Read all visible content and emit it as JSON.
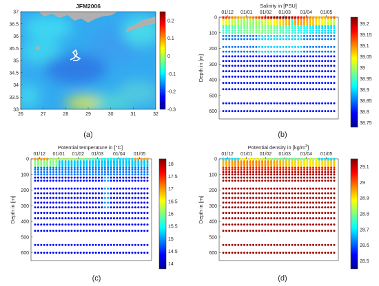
{
  "panels": {
    "a": {
      "label": "(a)",
      "title": "JFM2006"
    },
    "b": {
      "label": "(b)",
      "title": "Salinity in [PSU]"
    },
    "c": {
      "label": "(c)",
      "title": "Potential temperature in [°C]"
    },
    "d": {
      "label": "(d)",
      "title_prefix": "Potential density in [kg/m",
      "title_sup": "3",
      "title_suffix": "]"
    }
  },
  "chart_data": [
    {
      "id": "a",
      "type": "heatmap",
      "title": "JFM2006",
      "x_ticks": [
        "26",
        "27",
        "28",
        "29",
        "30",
        "31",
        "32"
      ],
      "xlim": [
        26,
        32
      ],
      "y_ticks": [
        "33",
        "33.5",
        "34",
        "34.5",
        "35",
        "35.5",
        "36",
        "36.5",
        "37"
      ],
      "ylim": [
        33,
        37
      ],
      "colorbar": {
        "ticks": [
          "-0.3",
          "-0.2",
          "-0.1",
          "0",
          "0.1",
          "0.2"
        ],
        "range": [
          -0.3,
          0.25
        ]
      },
      "colormap": "jet",
      "land_color": "#b0b0b0",
      "track_color": "#ffffff"
    },
    {
      "id": "b",
      "type": "scatter",
      "title": "Salinity in [PSU]",
      "xlabel": "",
      "ylabel": "Depth in [m]",
      "x_ticks": [
        "01/12",
        "01/01",
        "01/02",
        "01/03",
        "01/04",
        "01/05"
      ],
      "y_ticks": [
        "0",
        "100",
        "200",
        "300",
        "400",
        "500",
        "600"
      ],
      "ylim": [
        0,
        650
      ],
      "colorbar": {
        "ticks": [
          "38.75",
          "38.8",
          "38.85",
          "38.9",
          "38.95",
          "39",
          "39.05",
          "39.1",
          "39.15",
          "39.2"
        ],
        "range": [
          38.73,
          39.23
        ]
      },
      "colormap": "jet"
    },
    {
      "id": "c",
      "type": "scatter",
      "title": "Potential temperature in [°C]",
      "xlabel": "",
      "ylabel": "Depth in [m]",
      "x_ticks": [
        "01/12",
        "01/01",
        "01/02",
        "01/03",
        "01/04",
        "01/05"
      ],
      "y_ticks": [
        "0",
        "100",
        "200",
        "300",
        "400",
        "500",
        "600"
      ],
      "ylim": [
        0,
        650
      ],
      "colorbar": {
        "ticks": [
          "14",
          "14.5",
          "15",
          "15.5",
          "16",
          "16.5",
          "17",
          "17.5",
          "18"
        ],
        "range": [
          13.8,
          18.2
        ]
      },
      "colormap": "jet"
    },
    {
      "id": "d",
      "type": "scatter",
      "title": "Potential density in [kg/m3]",
      "xlabel": "",
      "ylabel": "Depth in [m]",
      "x_ticks": [
        "01/12",
        "01/01",
        "01/02",
        "01/03",
        "01/04",
        "01/05"
      ],
      "y_ticks": [
        "0",
        "100",
        "200",
        "300",
        "400",
        "500",
        "600"
      ],
      "ylim": [
        0,
        650
      ],
      "colorbar": {
        "ticks": [
          "28.5",
          "28.6",
          "28.7",
          "28.8",
          "28.9",
          "29",
          "29.1"
        ],
        "range": [
          28.45,
          29.15
        ]
      },
      "colormap": "jet"
    }
  ]
}
